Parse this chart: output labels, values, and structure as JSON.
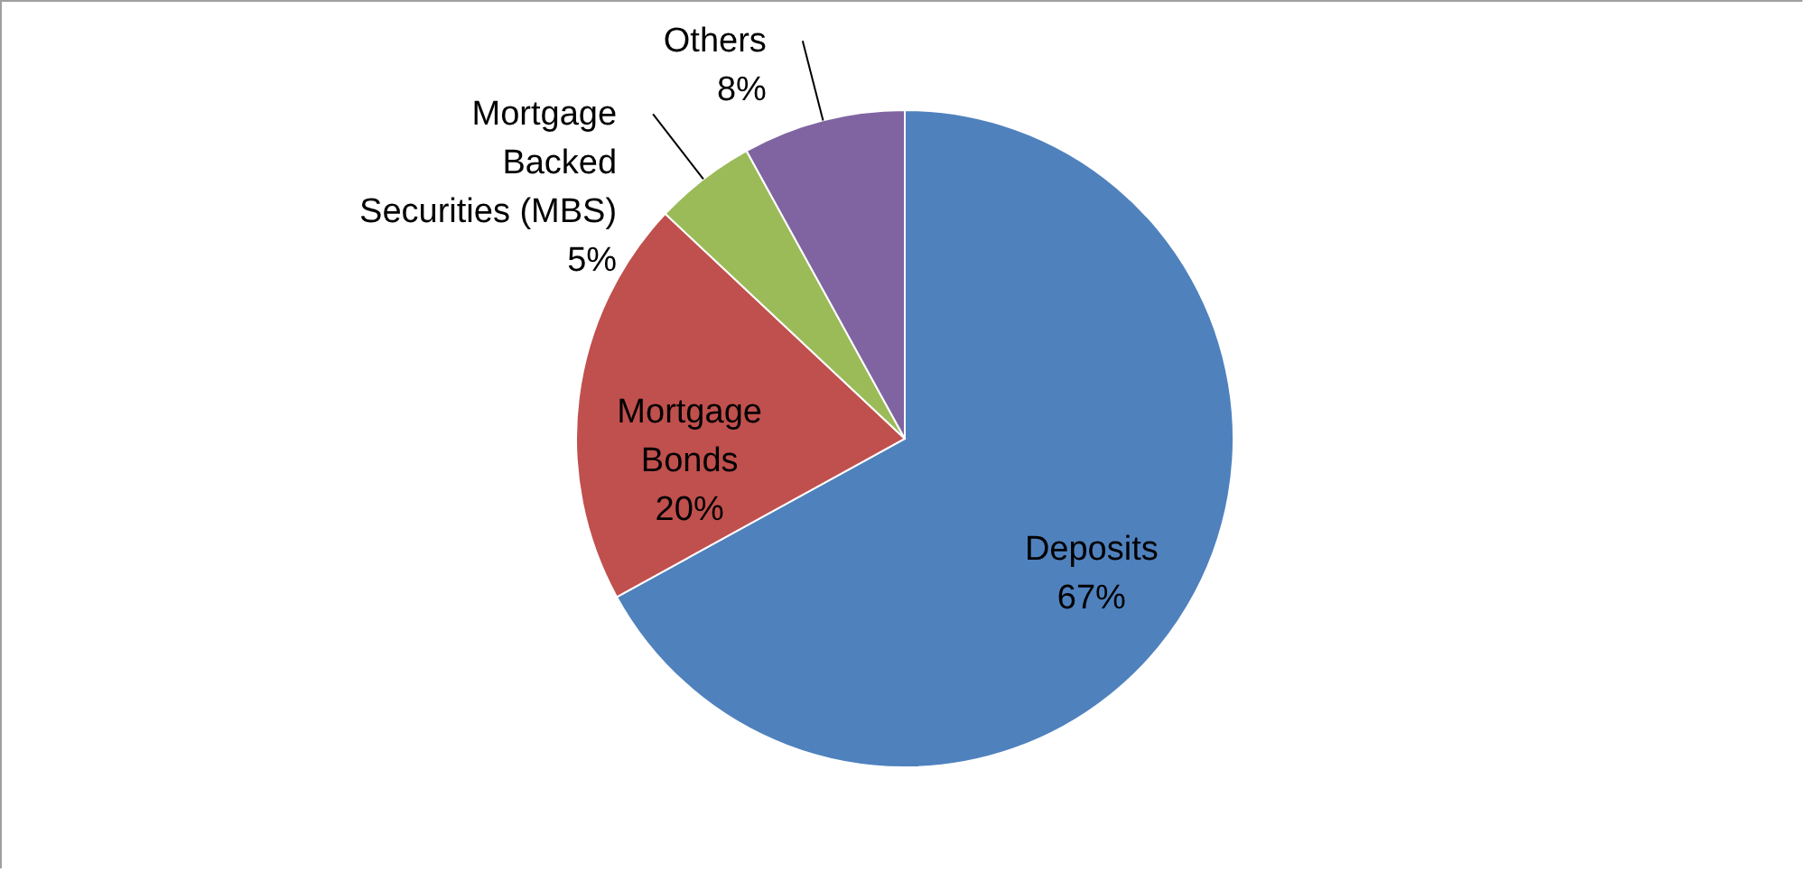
{
  "chart_data": {
    "type": "pie",
    "categories": [
      "Deposits",
      "Mortgage Bonds",
      "Mortgage Backed Securities (MBS)",
      "Others"
    ],
    "values": [
      67,
      20,
      5,
      8
    ],
    "colors": [
      "#4f81bd",
      "#c0504d",
      "#9bbb59",
      "#8064a2"
    ],
    "value_labels": [
      "67%",
      "20%",
      "5%",
      "8%"
    ],
    "legend": false
  }
}
